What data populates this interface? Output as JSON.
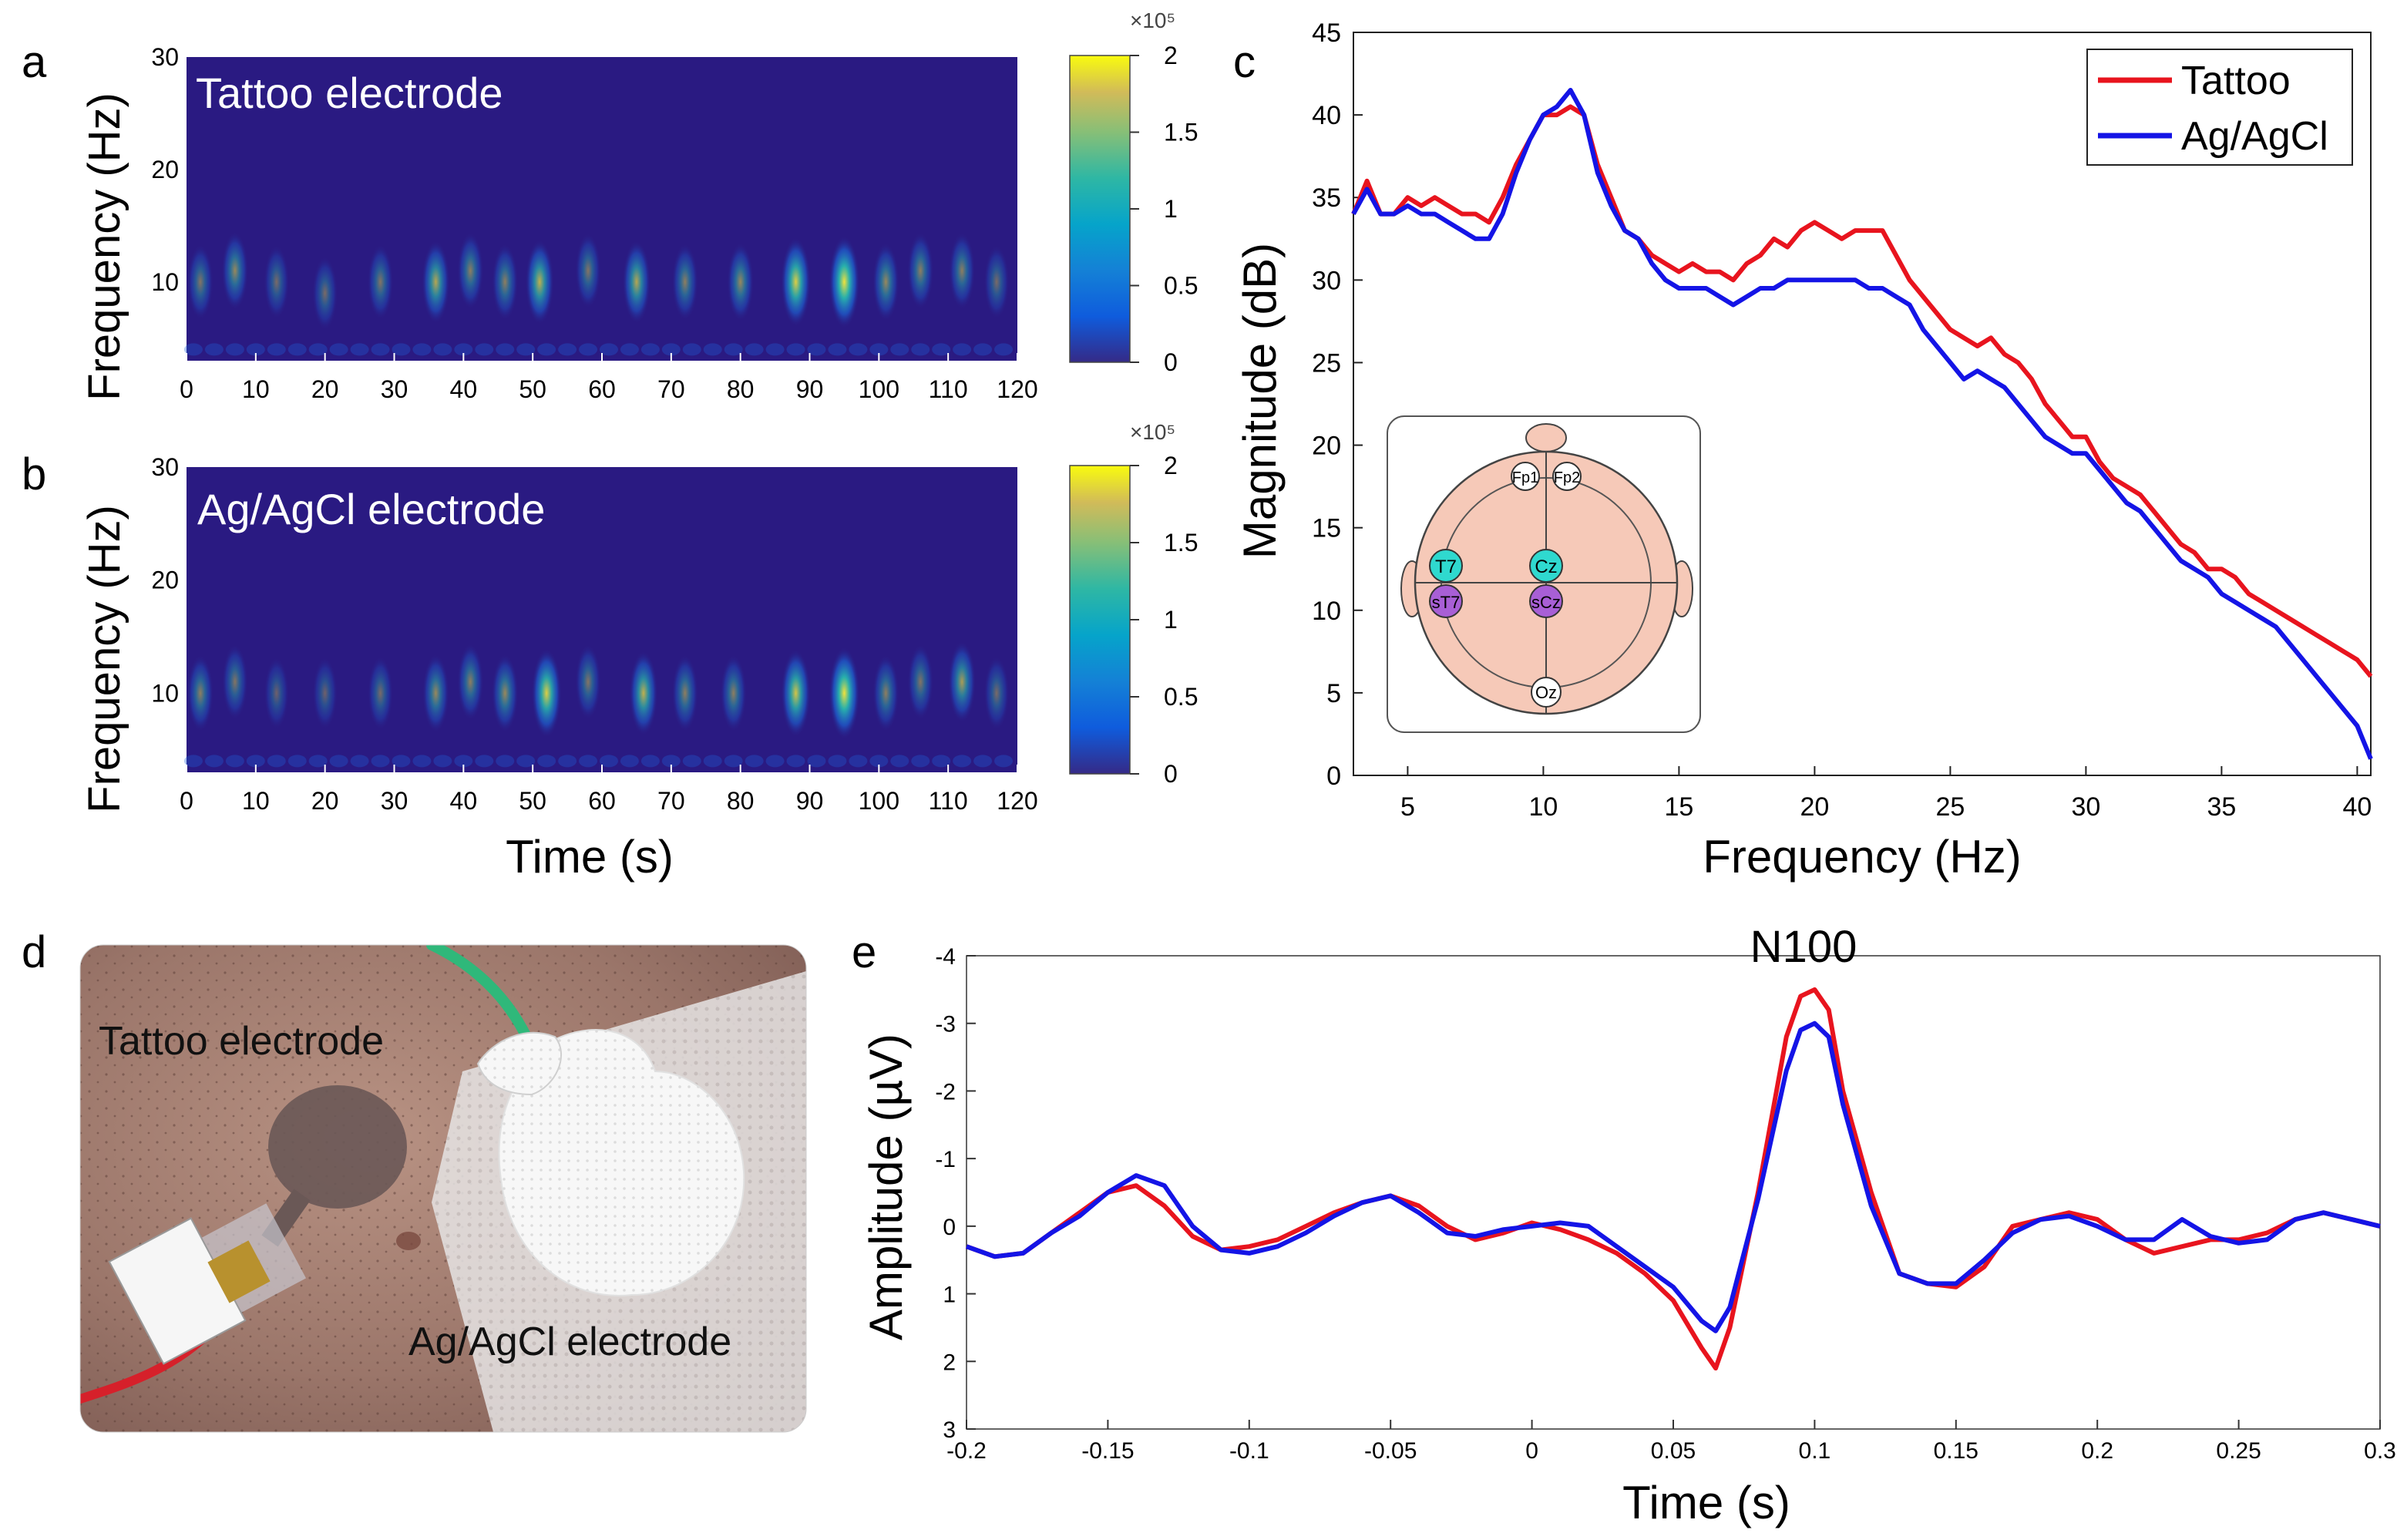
{
  "panel_labels": {
    "a": "a",
    "b": "b",
    "c": "c",
    "d": "d",
    "e": "e"
  },
  "colors": {
    "tattoo": "#e8141e",
    "agagcl": "#1414e6",
    "spec_bg": "#2a1a82",
    "skin": "#f6c9b8",
    "electrode_cz": "#2fd9cf",
    "electrode_scz": "#a85fd6"
  },
  "spectrogram_a": {
    "inner_label": "Tattoo electrode",
    "ylabel": "Frequency (Hz)",
    "xticks": [
      "0",
      "10",
      "20",
      "30",
      "40",
      "50",
      "60",
      "70",
      "80",
      "90",
      "100",
      "110",
      "120"
    ],
    "yticks": [
      "10",
      "20",
      "30"
    ],
    "colorbar_ticks": [
      "0",
      "0.5",
      "1",
      "1.5",
      "2"
    ],
    "colorbar_exponent": "×10⁵",
    "blobs": [
      [
        2,
        10,
        0.45
      ],
      [
        7,
        11,
        0.55
      ],
      [
        13,
        10,
        0.4
      ],
      [
        20,
        9,
        0.4
      ],
      [
        28,
        10,
        0.45
      ],
      [
        36,
        10,
        0.7
      ],
      [
        41,
        11,
        0.5
      ],
      [
        46,
        10,
        0.5
      ],
      [
        51,
        10,
        0.75
      ],
      [
        58,
        11,
        0.45
      ],
      [
        65,
        10,
        0.7
      ],
      [
        72,
        10,
        0.5
      ],
      [
        80,
        10,
        0.55
      ],
      [
        88,
        10,
        0.9
      ],
      [
        95,
        10,
        1.0
      ],
      [
        101,
        10,
        0.55
      ],
      [
        106,
        11,
        0.5
      ],
      [
        112,
        11,
        0.5
      ],
      [
        117,
        10,
        0.4
      ]
    ]
  },
  "spectrogram_b": {
    "inner_label": "Ag/AgCl electrode",
    "ylabel": "Frequency (Hz)",
    "xlabel": "Time (s)",
    "xticks": [
      "0",
      "10",
      "20",
      "30",
      "40",
      "50",
      "60",
      "70",
      "80",
      "90",
      "100",
      "110",
      "120"
    ],
    "yticks": [
      "10",
      "20",
      "30"
    ],
    "colorbar_ticks": [
      "0",
      "0.5",
      "1",
      "1.5",
      "2"
    ],
    "colorbar_exponent": "×10⁵",
    "blobs": [
      [
        2,
        10,
        0.5
      ],
      [
        7,
        11,
        0.45
      ],
      [
        13,
        10,
        0.35
      ],
      [
        20,
        10,
        0.35
      ],
      [
        28,
        10,
        0.4
      ],
      [
        36,
        10,
        0.55
      ],
      [
        41,
        11,
        0.5
      ],
      [
        46,
        10,
        0.55
      ],
      [
        52,
        10,
        0.9
      ],
      [
        58,
        11,
        0.45
      ],
      [
        66,
        10,
        0.75
      ],
      [
        72,
        10,
        0.5
      ],
      [
        79,
        10,
        0.5
      ],
      [
        88,
        10,
        0.85
      ],
      [
        95,
        10,
        1.0
      ],
      [
        101,
        10,
        0.5
      ],
      [
        106,
        11,
        0.45
      ],
      [
        112,
        11,
        0.65
      ],
      [
        117,
        10,
        0.4
      ]
    ]
  },
  "psd": {
    "xlabel": "Frequency (Hz)",
    "ylabel": "Magnitude (dB)",
    "xticks": [
      "5",
      "10",
      "15",
      "20",
      "25",
      "30",
      "35",
      "40"
    ],
    "yticks": [
      "0",
      "5",
      "10",
      "15",
      "20",
      "25",
      "30",
      "35",
      "40",
      "45"
    ],
    "legend": {
      "tattoo": "Tattoo",
      "agagcl": "Ag/AgCl"
    },
    "electrode_labels": {
      "fp1": "Fp1",
      "fp2": "Fp2",
      "t7": "T7",
      "cz": "Cz",
      "st7": "sT7",
      "scz": "sCz",
      "oz": "Oz"
    }
  },
  "photo": {
    "label_tattoo": "Tattoo electrode",
    "label_agagcl": "Ag/AgCl electrode"
  },
  "erp": {
    "title": "N100",
    "xlabel": "Time (s)",
    "ylabel": "Amplitude (µV)",
    "xticks": [
      "-0.2",
      "-0.15",
      "-0.1",
      "-0.05",
      "0",
      "0.05",
      "0.1",
      "0.15",
      "0.2",
      "0.25",
      "0.3"
    ],
    "yticks": [
      "-4",
      "-3",
      "-2",
      "-1",
      "0",
      "1",
      "2",
      "3"
    ]
  },
  "chart_data": [
    {
      "id": "c",
      "type": "line",
      "xlim": [
        3,
        40.5
      ],
      "ylim": [
        0,
        45
      ],
      "series": [
        {
          "name": "Tattoo",
          "color": "#e8141e",
          "x": [
            3,
            3.5,
            4,
            4.5,
            5,
            5.5,
            6,
            6.5,
            7,
            7.5,
            8,
            8.5,
            9,
            9.5,
            10,
            10.5,
            11,
            11.5,
            12,
            12.5,
            13,
            13.5,
            14,
            14.5,
            15,
            15.5,
            16,
            16.5,
            17,
            17.5,
            18,
            18.5,
            19,
            19.5,
            20,
            20.5,
            21,
            21.5,
            22,
            22.5,
            23,
            23.5,
            24,
            24.5,
            25,
            25.5,
            26,
            26.5,
            27,
            27.5,
            28,
            28.5,
            29,
            29.5,
            30,
            30.5,
            31,
            31.5,
            32,
            32.5,
            33,
            33.5,
            34,
            34.5,
            35,
            35.5,
            36,
            36.5,
            37,
            37.5,
            38,
            38.5,
            39,
            39.5,
            40,
            40.5
          ],
          "y": [
            34,
            36,
            34,
            34,
            35,
            34.5,
            35,
            34.5,
            34,
            34,
            33.5,
            35,
            37,
            38.5,
            40,
            40,
            40.5,
            40,
            37,
            35,
            33,
            32.5,
            31.5,
            31,
            30.5,
            31,
            30.5,
            30.5,
            30,
            31,
            31.5,
            32.5,
            32,
            33,
            33.5,
            33,
            32.5,
            33,
            33,
            33,
            31.5,
            30,
            29,
            28,
            27,
            26.5,
            26,
            26.5,
            25.5,
            25,
            24,
            22.5,
            21.5,
            20.5,
            20.5,
            19,
            18,
            17.5,
            17,
            16,
            15,
            14,
            13.5,
            12.5,
            12.5,
            12,
            11,
            10.5,
            10,
            9.5,
            9,
            8.5,
            8,
            7.5,
            7,
            6
          ]
        },
        {
          "name": "Ag/AgCl",
          "color": "#1414e6",
          "x": [
            3,
            3.5,
            4,
            4.5,
            5,
            5.5,
            6,
            6.5,
            7,
            7.5,
            8,
            8.5,
            9,
            9.5,
            10,
            10.5,
            11,
            11.5,
            12,
            12.5,
            13,
            13.5,
            14,
            14.5,
            15,
            15.5,
            16,
            16.5,
            17,
            17.5,
            18,
            18.5,
            19,
            19.5,
            20,
            20.5,
            21,
            21.5,
            22,
            22.5,
            23,
            23.5,
            24,
            24.5,
            25,
            25.5,
            26,
            26.5,
            27,
            27.5,
            28,
            28.5,
            29,
            29.5,
            30,
            30.5,
            31,
            31.5,
            32,
            32.5,
            33,
            33.5,
            34,
            34.5,
            35,
            35.5,
            36,
            36.5,
            37,
            37.5,
            38,
            38.5,
            39,
            39.5,
            40,
            40.5
          ],
          "y": [
            34,
            35.5,
            34,
            34,
            34.5,
            34,
            34,
            33.5,
            33,
            32.5,
            32.5,
            34,
            36.5,
            38.5,
            40,
            40.5,
            41.5,
            40,
            36.5,
            34.5,
            33,
            32.5,
            31,
            30,
            29.5,
            29.5,
            29.5,
            29,
            28.5,
            29,
            29.5,
            29.5,
            30,
            30,
            30,
            30,
            30,
            30,
            29.5,
            29.5,
            29,
            28.5,
            27,
            26,
            25,
            24,
            24.5,
            24,
            23.5,
            22.5,
            21.5,
            20.5,
            20,
            19.5,
            19.5,
            18.5,
            17.5,
            16.5,
            16,
            15,
            14,
            13,
            12.5,
            12,
            11,
            10.5,
            10,
            9.5,
            9,
            8,
            7,
            6,
            5,
            4,
            3,
            1
          ]
        }
      ]
    },
    {
      "id": "e",
      "type": "line",
      "title": "N100",
      "xlim": [
        -0.2,
        0.3
      ],
      "ylim": [
        3,
        -4
      ],
      "series": [
        {
          "name": "Tattoo",
          "color": "#e8141e",
          "x": [
            -0.2,
            -0.19,
            -0.18,
            -0.17,
            -0.16,
            -0.15,
            -0.14,
            -0.13,
            -0.12,
            -0.11,
            -0.1,
            -0.09,
            -0.08,
            -0.07,
            -0.06,
            -0.05,
            -0.04,
            -0.03,
            -0.02,
            -0.01,
            0,
            0.01,
            0.02,
            0.03,
            0.04,
            0.05,
            0.06,
            0.065,
            0.07,
            0.08,
            0.09,
            0.095,
            0.1,
            0.105,
            0.11,
            0.12,
            0.13,
            0.14,
            0.15,
            0.16,
            0.17,
            0.18,
            0.19,
            0.2,
            0.21,
            0.22,
            0.23,
            0.24,
            0.25,
            0.26,
            0.27,
            0.28,
            0.29,
            0.3
          ],
          "y": [
            0.3,
            0.45,
            0.4,
            0.1,
            -0.2,
            -0.5,
            -0.6,
            -0.3,
            0.15,
            0.35,
            0.3,
            0.2,
            0.0,
            -0.2,
            -0.35,
            -0.45,
            -0.3,
            0.0,
            0.2,
            0.1,
            -0.05,
            0.05,
            0.2,
            0.4,
            0.7,
            1.1,
            1.8,
            2.1,
            1.5,
            -0.5,
            -2.8,
            -3.4,
            -3.5,
            -3.2,
            -2.0,
            -0.5,
            0.7,
            0.85,
            0.9,
            0.6,
            0.0,
            -0.1,
            -0.2,
            -0.1,
            0.2,
            0.4,
            0.3,
            0.2,
            0.2,
            0.1,
            -0.1,
            -0.2,
            -0.1,
            0.0
          ]
        },
        {
          "name": "Ag/AgCl",
          "color": "#1414e6",
          "x": [
            -0.2,
            -0.19,
            -0.18,
            -0.17,
            -0.16,
            -0.15,
            -0.14,
            -0.13,
            -0.12,
            -0.11,
            -0.1,
            -0.09,
            -0.08,
            -0.07,
            -0.06,
            -0.05,
            -0.04,
            -0.03,
            -0.02,
            -0.01,
            0,
            0.01,
            0.02,
            0.03,
            0.04,
            0.05,
            0.06,
            0.065,
            0.07,
            0.08,
            0.09,
            0.095,
            0.1,
            0.105,
            0.11,
            0.12,
            0.13,
            0.14,
            0.15,
            0.16,
            0.17,
            0.18,
            0.19,
            0.2,
            0.21,
            0.22,
            0.23,
            0.24,
            0.25,
            0.26,
            0.27,
            0.28,
            0.29,
            0.3
          ],
          "y": [
            0.3,
            0.45,
            0.4,
            0.1,
            -0.15,
            -0.5,
            -0.75,
            -0.6,
            0.0,
            0.35,
            0.4,
            0.3,
            0.1,
            -0.15,
            -0.35,
            -0.45,
            -0.2,
            0.1,
            0.15,
            0.05,
            0.0,
            -0.05,
            0.0,
            0.3,
            0.6,
            0.9,
            1.4,
            1.55,
            1.2,
            -0.4,
            -2.3,
            -2.9,
            -3.0,
            -2.8,
            -1.8,
            -0.3,
            0.7,
            0.85,
            0.85,
            0.5,
            0.1,
            -0.1,
            -0.15,
            0.0,
            0.2,
            0.2,
            -0.1,
            0.15,
            0.25,
            0.2,
            -0.1,
            -0.2,
            -0.1,
            0.0
          ]
        }
      ]
    }
  ]
}
